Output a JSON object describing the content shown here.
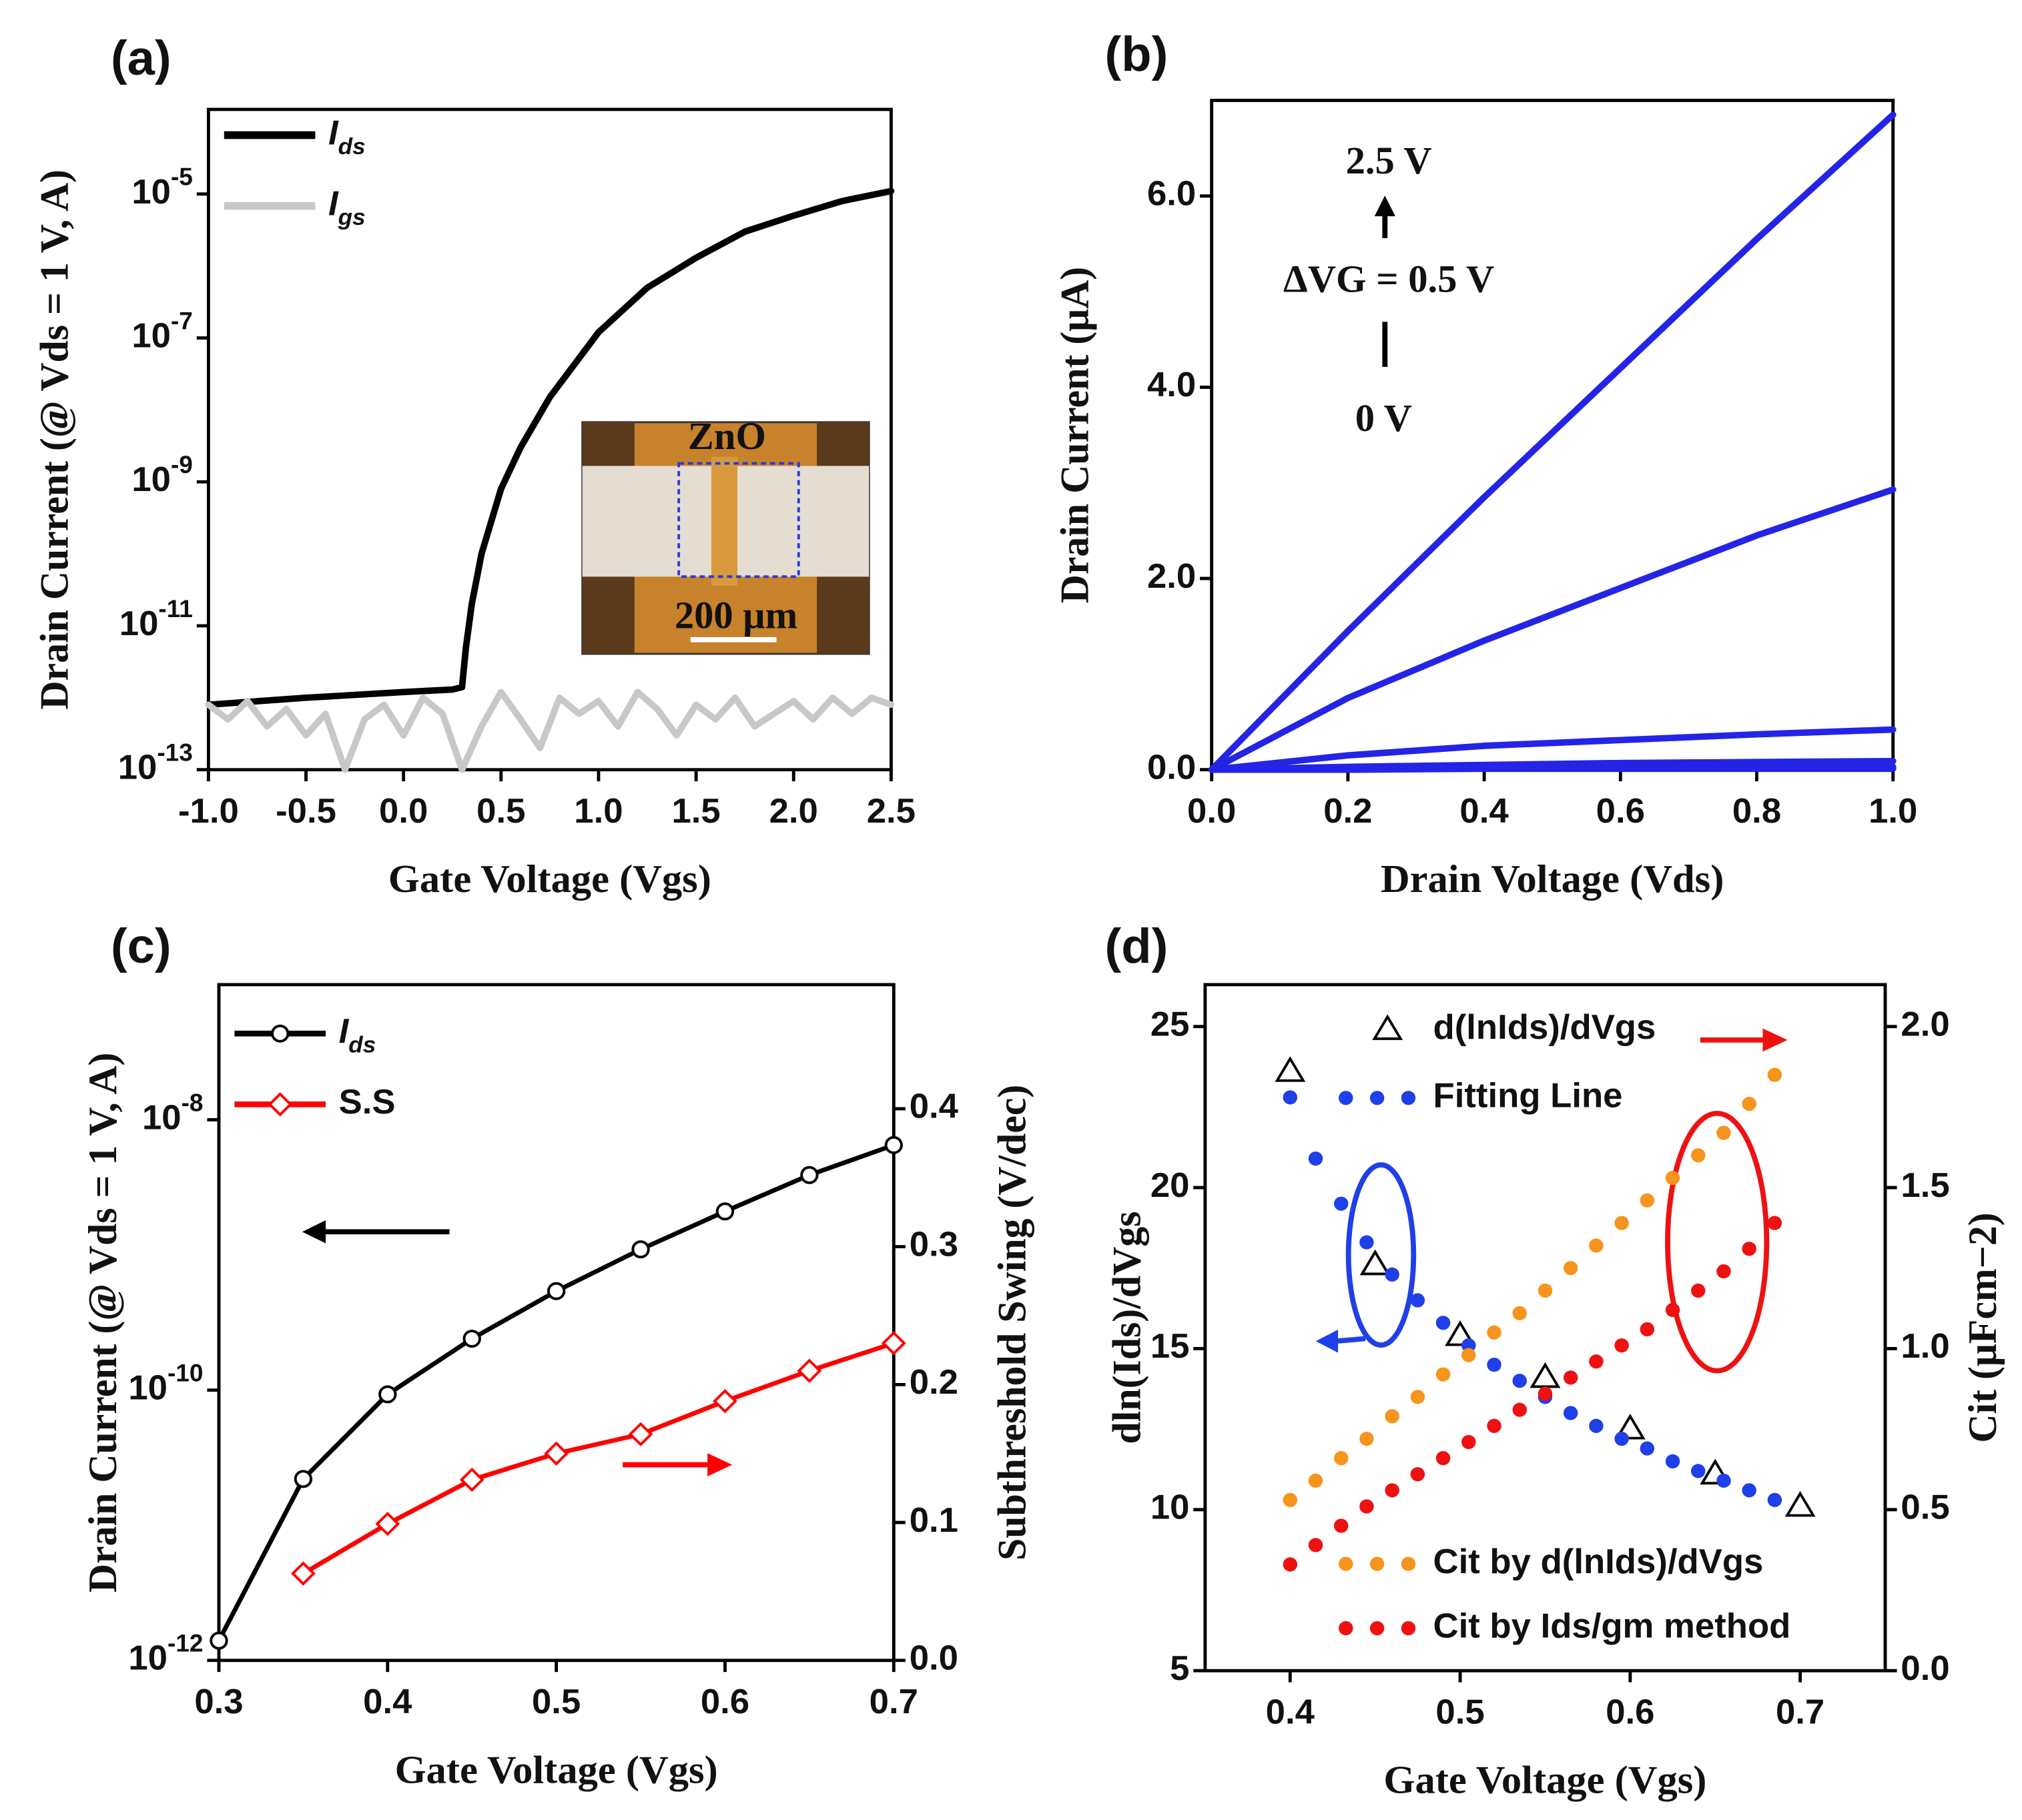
{
  "chart_data": [
    {
      "type": "line",
      "title": "(a)",
      "xlabel": "Gate Voltage (Vgs)",
      "ylabel": "Drain Current (@ Vds = 1 V, A)",
      "xlim": [
        -1,
        2.5
      ],
      "xticks": [
        {
          "value": -1,
          "label": "-1.0"
        },
        -0.5,
        {
          "value": 0,
          "label": "0.0"
        },
        0.5,
        {
          "value": 1,
          "label": "1.0"
        },
        1.5,
        {
          "value": 2,
          "label": "2.0"
        },
        2.5
      ],
      "ylim": [
        1e-13,
        0.00015
      ],
      "yscale": "log",
      "yticks": [
        {
          "value": 1e-13,
          "label": "10-13"
        },
        {
          "value": 1e-11,
          "label": "10-11"
        },
        {
          "value": 1e-09,
          "label": "10-9"
        },
        {
          "value": 1e-07,
          "label": "10-7"
        },
        {
          "value": 1e-05,
          "label": "10-5"
        }
      ],
      "legend": "top-left",
      "annotations": [
        "ZnO",
        "200 μm"
      ],
      "series": [
        {
          "name": "Ids",
          "color": "#000000",
          "x": [
            -1,
            -0.5,
            0,
            0.25,
            0.3,
            0.32,
            0.35,
            0.4,
            0.5,
            0.6,
            0.75,
            1.0,
            1.25,
            1.5,
            1.75,
            2.0,
            2.25,
            2.5
          ],
          "values": [
            8e-13,
            1e-12,
            1.2e-12,
            1.3e-12,
            1.4e-12,
            5e-12,
            2e-11,
            1e-10,
            8e-10,
            3e-09,
            1.5e-08,
            1.2e-07,
            5e-07,
            1.3e-06,
            3e-06,
            5e-06,
            8e-06,
            1.1e-05
          ]
        },
        {
          "name": "Igs",
          "color": "#c8c8c8",
          "x": [
            -1,
            -0.9,
            -0.8,
            -0.7,
            -0.6,
            -0.5,
            -0.4,
            -0.3,
            -0.2,
            -0.1,
            0,
            0.1,
            0.2,
            0.3,
            0.4,
            0.5,
            0.6,
            0.7,
            0.8,
            0.9,
            1.0,
            1.1,
            1.2,
            1.3,
            1.4,
            1.5,
            1.6,
            1.7,
            1.8,
            1.9,
            2.0,
            2.1,
            2.2,
            2.3,
            2.4,
            2.5
          ],
          "values": [
            8e-13,
            5e-13,
            9e-13,
            4e-13,
            7e-13,
            3e-13,
            6e-13,
            1e-13,
            5e-13,
            8e-13,
            3e-13,
            1e-12,
            6e-13,
            1e-13,
            4e-13,
            1.2e-12,
            5e-13,
            2e-13,
            1e-12,
            6e-13,
            9e-13,
            4e-13,
            1.2e-12,
            7e-13,
            3e-13,
            8e-13,
            5e-13,
            1e-12,
            4e-13,
            6e-13,
            9e-13,
            5e-13,
            1e-12,
            6e-13,
            1e-12,
            8e-13
          ]
        }
      ]
    },
    {
      "type": "line",
      "title": "(b)",
      "xlabel": "Drain Voltage (Vds)",
      "ylabel": "Drain Current (μA)",
      "xlim": [
        0,
        1
      ],
      "xticks": [
        {
          "value": 0,
          "label": "0.0"
        },
        0.2,
        0.4,
        0.6,
        0.8,
        {
          "value": 1,
          "label": "1.0"
        }
      ],
      "ylim": [
        0,
        7.0
      ],
      "yticks": [
        {
          "value": 0,
          "label": "0.0"
        },
        {
          "value": 2,
          "label": "2.0"
        },
        {
          "value": 4,
          "label": "4.0"
        },
        {
          "value": 6,
          "label": "6.0"
        }
      ],
      "annotations": [
        "2.5 V",
        "ΔVG = 0.5 V",
        "0 V"
      ],
      "x": [
        0,
        0.2,
        0.4,
        0.6,
        0.8,
        1.0
      ],
      "series": [
        {
          "color": "#2424e6",
          "values": [
            0,
            1.45,
            2.85,
            4.2,
            5.55,
            6.85
          ]
        },
        {
          "color": "#2424e6",
          "values": [
            0,
            0.75,
            1.35,
            1.9,
            2.45,
            2.93
          ]
        },
        {
          "color": "#2424e6",
          "values": [
            0,
            0.15,
            0.25,
            0.31,
            0.37,
            0.42
          ]
        },
        {
          "color": "#2424e6",
          "values": [
            0,
            0.03,
            0.05,
            0.07,
            0.08,
            0.09
          ]
        },
        {
          "color": "#2424e6",
          "values": [
            0,
            0.01,
            0.02,
            0.02,
            0.03,
            0.03
          ]
        },
        {
          "color": "#2424e6",
          "values": [
            0,
            0,
            0.01,
            0.01,
            0.01,
            0.01
          ]
        }
      ]
    },
    {
      "type": "line",
      "title": "(c)",
      "xlabel": "Gate Voltage (Vgs)",
      "ylabel": "Drain Current (@ Vds = 1 V, A)",
      "y2label": "Subthreshold Swing (V/dec)",
      "xlim": [
        0.3,
        0.7
      ],
      "xticks": [
        0.3,
        0.4,
        0.5,
        0.6,
        0.7
      ],
      "ylim": [
        1e-12,
        1e-07
      ],
      "yscale": "log",
      "yticks": [
        {
          "value": 1e-12,
          "label": "10-12"
        },
        {
          "value": 1e-10,
          "label": "10-10"
        },
        {
          "value": 1e-08,
          "label": "10-8"
        }
      ],
      "y2lim": [
        0,
        0.49
      ],
      "y2ticks": [
        {
          "value": 0,
          "label": "0.0"
        },
        0.1,
        0.2,
        0.3,
        0.4
      ],
      "legend": "top-left",
      "series": [
        {
          "name": "Ids",
          "color": "#000000",
          "marker": "circle",
          "x": [
            0.3,
            0.35,
            0.4,
            0.45,
            0.5,
            0.55,
            0.6,
            0.65,
            0.7
          ],
          "values": [
            1.4e-12,
            2.2e-11,
            9.3e-11,
            2.4e-10,
            5.4e-10,
            1.1e-09,
            2.1e-09,
            3.9e-09,
            6.5e-09
          ]
        },
        {
          "name": "S.S",
          "color": "#ff0000",
          "marker": "diamond",
          "axis": "y2",
          "x": [
            0.35,
            0.4,
            0.45,
            0.5,
            0.55,
            0.6,
            0.65,
            0.7
          ],
          "values": [
            0.063,
            0.099,
            0.131,
            0.15,
            0.164,
            0.188,
            0.21,
            0.23
          ]
        }
      ]
    },
    {
      "type": "scatter",
      "title": "(d)",
      "xlabel": "Gate Voltage (Vgs)",
      "ylabel": "dln(Ids)/dVgs",
      "y2label": "Cit (μFcm−2)",
      "xlim": [
        0.35,
        0.75
      ],
      "xticks": [
        0.4,
        0.5,
        0.6,
        0.7
      ],
      "ylim": [
        5,
        26.3
      ],
      "yticks": [
        5,
        10,
        15,
        20,
        25
      ],
      "y2lim": [
        0,
        2.13
      ],
      "y2ticks": [
        {
          "value": 0,
          "label": "0.0"
        },
        0.5,
        {
          "value": 1,
          "label": "1.0"
        },
        1.5,
        {
          "value": 2,
          "label": "2.0"
        }
      ],
      "series": [
        {
          "name": "d(lnIds)/dVgs",
          "color": "#000000",
          "marker": "triangle",
          "x": [
            0.4,
            0.45,
            0.5,
            0.55,
            0.6,
            0.65,
            0.7
          ],
          "values": [
            23.6,
            17.6,
            15.4,
            14.1,
            12.5,
            11.1,
            10.1
          ]
        },
        {
          "name": "Fitting Line",
          "color": "#1f3fe8",
          "marker": "dot",
          "x": [
            0.4,
            0.415,
            0.43,
            0.445,
            0.46,
            0.475,
            0.49,
            0.505,
            0.52,
            0.535,
            0.55,
            0.565,
            0.58,
            0.595,
            0.61,
            0.625,
            0.64,
            0.655,
            0.67,
            0.685
          ],
          "values": [
            22.8,
            20.9,
            19.5,
            18.3,
            17.3,
            16.5,
            15.8,
            15.1,
            14.5,
            14.0,
            13.5,
            13.0,
            12.6,
            12.2,
            11.9,
            11.5,
            11.2,
            10.9,
            10.6,
            10.3
          ]
        },
        {
          "name": "Cit by d(lnIds)/dVgs",
          "color": "#f7941d",
          "marker": "dot",
          "axis": "y2",
          "x": [
            0.4,
            0.415,
            0.43,
            0.445,
            0.46,
            0.475,
            0.49,
            0.505,
            0.52,
            0.535,
            0.55,
            0.565,
            0.58,
            0.595,
            0.61,
            0.625,
            0.64,
            0.655,
            0.67,
            0.685
          ],
          "values": [
            0.53,
            0.59,
            0.66,
            0.72,
            0.79,
            0.85,
            0.92,
            0.98,
            1.05,
            1.11,
            1.18,
            1.25,
            1.32,
            1.39,
            1.46,
            1.53,
            1.6,
            1.67,
            1.76,
            1.85
          ]
        },
        {
          "name": "Cit by Ids/gm method",
          "color": "#ee1111",
          "marker": "dot",
          "axis": "y2",
          "x": [
            0.4,
            0.415,
            0.43,
            0.445,
            0.46,
            0.475,
            0.49,
            0.505,
            0.52,
            0.535,
            0.55,
            0.565,
            0.58,
            0.595,
            0.61,
            0.625,
            0.64,
            0.655,
            0.67,
            0.685
          ],
          "values": [
            0.33,
            0.39,
            0.45,
            0.51,
            0.56,
            0.61,
            0.66,
            0.71,
            0.76,
            0.81,
            0.86,
            0.91,
            0.96,
            1.01,
            1.06,
            1.12,
            1.18,
            1.24,
            1.31,
            1.39
          ]
        }
      ]
    }
  ]
}
